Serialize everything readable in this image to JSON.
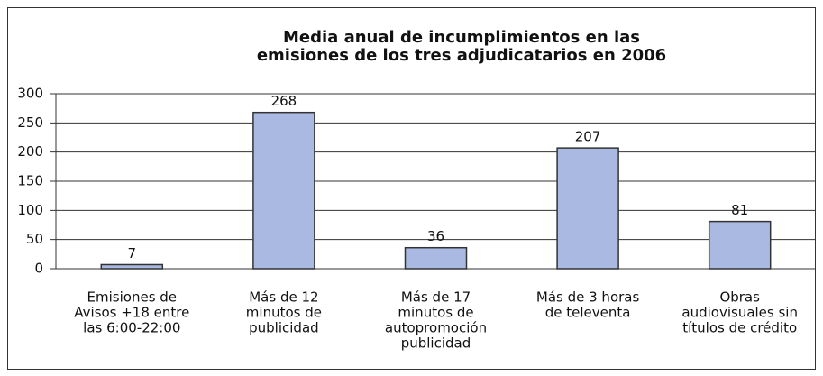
{
  "chart_data": {
    "type": "bar",
    "title": [
      "Media anual de incumplimientos en las",
      "emisiones de los tres adjudicatarios en 2006"
    ],
    "categories": [
      [
        "Emisiones de",
        "Avisos  +18 entre",
        "las 6:00-22:00"
      ],
      [
        "Más de 12",
        "minutos de",
        "publicidad"
      ],
      [
        "Más de 17",
        "minutos de",
        "autopromoción",
        "publicidad"
      ],
      [
        "Más de 3 horas",
        "de televenta"
      ],
      [
        "Obras",
        "audiovisuales sin",
        "títulos de crédito"
      ]
    ],
    "values": [
      7,
      268,
      36,
      207,
      81
    ],
    "color": "#a9b9e2",
    "ylim": [
      0,
      300
    ],
    "yticks": [
      0,
      50,
      100,
      150,
      200,
      250,
      300
    ],
    "grid": true
  }
}
